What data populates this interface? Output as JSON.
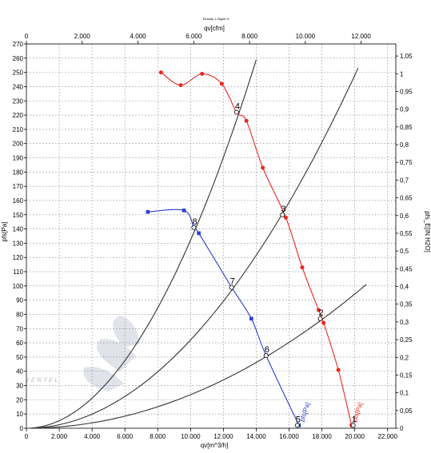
{
  "chart_data": {
    "type": "line",
    "title": "Density 1.2kg/m^3",
    "xlabel": "qv[m^3/h]",
    "x2label": "qv[cfm]",
    "ylabel": "pfs[Pa]",
    "y2label": "pfs_E[IN H2O]",
    "xlim": [
      0,
      22500
    ],
    "x2lim": [
      0,
      13243
    ],
    "ylim": [
      0,
      270
    ],
    "y2lim": [
      0,
      1.084
    ],
    "xticks": [
      "0",
      "2.000",
      "4.000",
      "6.000",
      "8.000",
      "10.000",
      "12.000",
      "14.000",
      "16.000",
      "18.000",
      "20.000",
      "22.000"
    ],
    "x2ticks": [
      "0",
      "2.000",
      "4.000",
      "6.000",
      "8.000",
      "10.000",
      "12.000"
    ],
    "yticks": [
      "0",
      "10",
      "20",
      "30",
      "40",
      "50",
      "60",
      "70",
      "80",
      "90",
      "100",
      "110",
      "120",
      "130",
      "140",
      "150",
      "160",
      "170",
      "180",
      "190",
      "200",
      "210",
      "220",
      "230",
      "240",
      "250",
      "260",
      "270"
    ],
    "y2ticks": [
      "0",
      "0,05",
      "0,1",
      "0,15",
      "0,2",
      "0,25",
      "0,3",
      "0,35",
      "0,4",
      "0,45",
      "0,5",
      "0,55",
      "0,6",
      "0,65",
      "0,7",
      "0,75",
      "0,8",
      "0,85",
      "0,9",
      "0,95",
      "1",
      "1,05"
    ],
    "grid": true,
    "series": [
      {
        "name": "pfs[Pa]",
        "color": "#e8281f",
        "marker": "circle",
        "x": [
          8200,
          9400,
          10700,
          11900,
          12800,
          13400,
          14400,
          15800,
          16800,
          17800,
          18100,
          19000,
          19800
        ],
        "y": [
          250,
          241,
          249,
          242,
          222,
          216,
          183,
          148,
          113,
          83,
          74,
          41,
          2
        ]
      },
      {
        "name": "pfs[Pa]",
        "color": "#2d3fd2",
        "marker": "square",
        "x": [
          7400,
          9600,
          10200,
          10500,
          12500,
          13700,
          14600,
          16600
        ],
        "y": [
          152,
          153,
          141,
          137,
          99,
          77,
          51,
          2
        ]
      }
    ],
    "system_curves": [
      {
        "x_end": 14000,
        "y_end": 259
      },
      {
        "x_end": 20200,
        "y_end": 253
      },
      {
        "x_end": 20700,
        "y_end": 101
      }
    ],
    "annotations": [
      {
        "text": "4",
        "x": 12800,
        "y": 222
      },
      {
        "text": "3",
        "x": 15600,
        "y": 150
      },
      {
        "text": "2",
        "x": 17900,
        "y": 77
      },
      {
        "text": "1",
        "x": 19900,
        "y": 2
      },
      {
        "text": "8",
        "x": 10200,
        "y": 141
      },
      {
        "text": "7",
        "x": 12500,
        "y": 99
      },
      {
        "text": "6",
        "x": 14600,
        "y": 51
      },
      {
        "text": "5",
        "x": 16500,
        "y": 2
      }
    ],
    "watermark": "VENTEL"
  }
}
